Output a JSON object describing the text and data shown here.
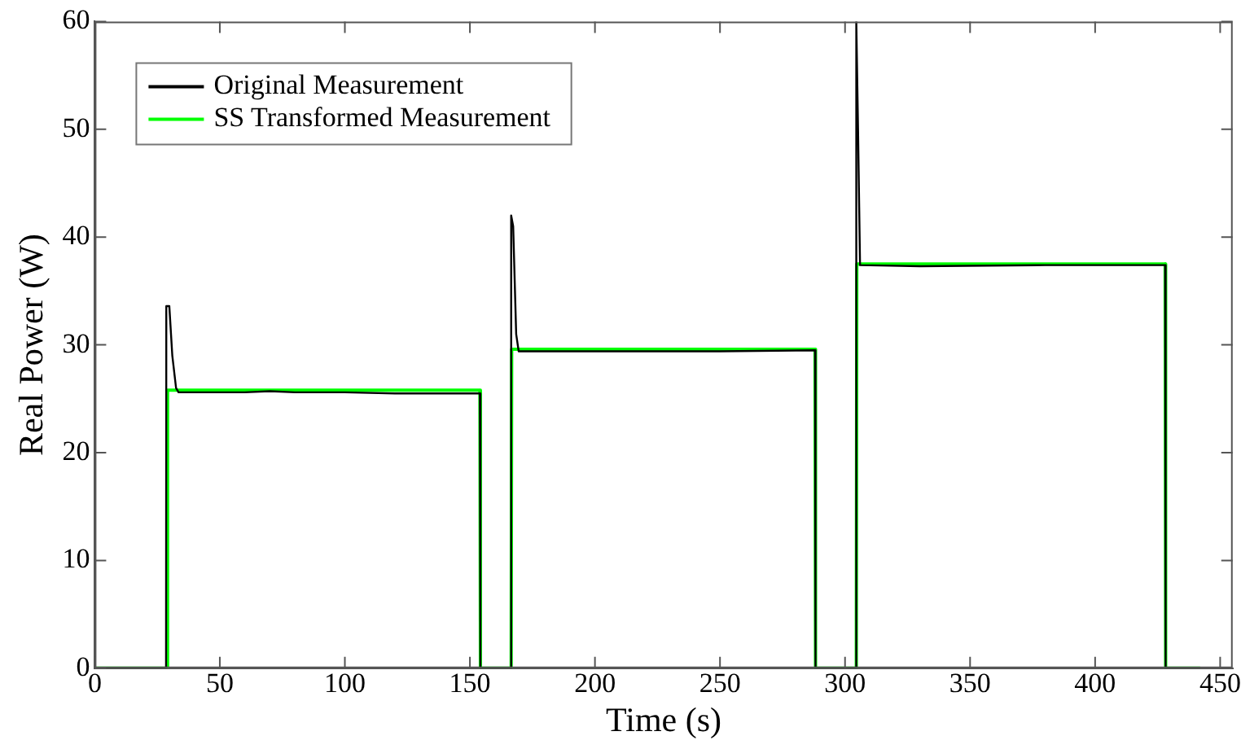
{
  "chart_data": {
    "type": "line",
    "xlabel": "Time (s)",
    "ylabel": "Real Power (W)",
    "xlim": [
      0,
      455
    ],
    "xticks": [
      0,
      50,
      100,
      150,
      200,
      250,
      300,
      350,
      400,
      450
    ],
    "ylim": [
      0,
      60
    ],
    "yticks": [
      0,
      10,
      20,
      30,
      40,
      50,
      60
    ],
    "grid": false,
    "legend": "top left",
    "marker": "none",
    "line_style": "solid",
    "series": [
      {
        "name": "Original Measurement",
        "color": "#000000",
        "x": [
          0,
          28.5,
          28.6,
          29.8,
          31,
          32.5,
          33.5,
          60,
          70,
          80,
          100,
          120,
          140,
          154,
          154.2,
          166.3,
          166.5,
          167.3,
          168.5,
          169.5,
          200,
          250,
          288,
          288.2,
          304.3,
          304.5,
          305.2,
          306,
          330,
          380,
          428,
          428.2,
          442
        ],
        "values": [
          0,
          0,
          33.6,
          33.6,
          29,
          26,
          25.6,
          25.6,
          25.7,
          25.6,
          25.6,
          25.5,
          25.5,
          25.5,
          0,
          0,
          42,
          41,
          31,
          29.4,
          29.4,
          29.4,
          29.5,
          0,
          0,
          60,
          50,
          37.4,
          37.3,
          37.4,
          37.4,
          0,
          0
        ]
      },
      {
        "name": "SS Transformed Measurement",
        "color": "#00ff00",
        "x": [
          0,
          29,
          29.1,
          154,
          154.2,
          166.5,
          166.7,
          288,
          288.2,
          304.5,
          304.7,
          428,
          428.2,
          442
        ],
        "values": [
          0,
          0,
          25.8,
          25.8,
          0,
          0,
          29.6,
          29.6,
          0,
          0,
          37.5,
          37.5,
          0,
          0
        ]
      }
    ]
  }
}
